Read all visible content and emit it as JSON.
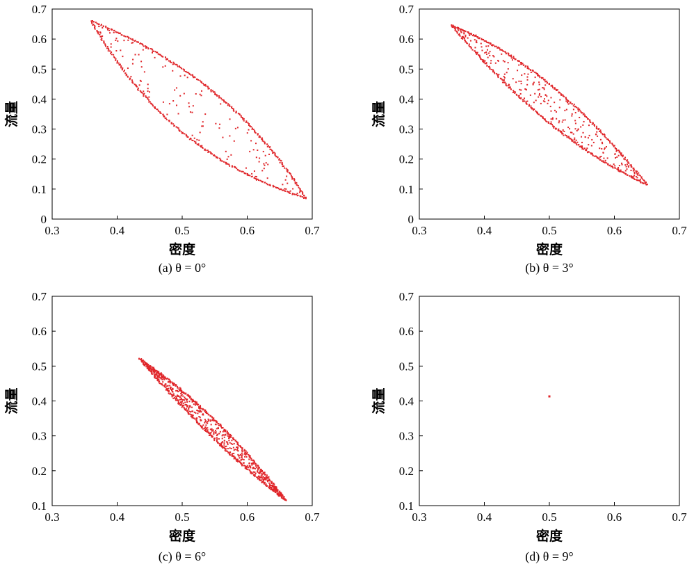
{
  "chart_data": [
    {
      "type": "scatter",
      "caption": "(a) θ = 0°",
      "xlabel": "密度",
      "ylabel": "流量",
      "xlim": [
        0.3,
        0.7
      ],
      "ylim": [
        0,
        0.7
      ],
      "xticks": [
        "0.3",
        "0.4",
        "0.5",
        "0.6",
        "0.7"
      ],
      "yticks": [
        "0",
        "0.1",
        "0.2",
        "0.3",
        "0.4",
        "0.5",
        "0.6",
        "0.7"
      ],
      "color": "#e0262a",
      "grid": false,
      "description_points": {
        "endpoint_upper_left": [
          0.36,
          0.66
        ],
        "endpoint_lower_right": [
          0.69,
          0.07
        ],
        "upper_branch_mid": [
          0.55,
          0.42
        ],
        "lower_branch_mid": [
          0.5,
          0.29
        ]
      }
    },
    {
      "type": "scatter",
      "caption": "(b) θ = 3°",
      "xlabel": "密度",
      "ylabel": "流量",
      "xlim": [
        0.3,
        0.7
      ],
      "ylim": [
        0,
        0.7
      ],
      "xticks": [
        "0.3",
        "0.4",
        "0.5",
        "0.6",
        "0.7"
      ],
      "yticks": [
        "0",
        "0.1",
        "0.2",
        "0.3",
        "0.4",
        "0.5",
        "0.6",
        "0.7"
      ],
      "color": "#e0262a",
      "grid": false,
      "description_points": {
        "endpoint_upper_left": [
          0.35,
          0.645
        ],
        "endpoint_lower_right": [
          0.65,
          0.115
        ],
        "upper_branch_mid": [
          0.5,
          0.45
        ],
        "lower_branch_mid": [
          0.5,
          0.32
        ]
      }
    },
    {
      "type": "scatter",
      "caption": "(c) θ = 6°",
      "xlabel": "密度",
      "ylabel": "流量",
      "xlim": [
        0.3,
        0.7
      ],
      "ylim": [
        0.1,
        0.7
      ],
      "xticks": [
        "0.3",
        "0.4",
        "0.5",
        "0.6",
        "0.7"
      ],
      "yticks": [
        "0.1",
        "0.2",
        "0.3",
        "0.4",
        "0.5",
        "0.6",
        "0.7"
      ],
      "color": "#e0262a",
      "grid": false,
      "description_points": {
        "endpoint_upper_left": [
          0.435,
          0.52
        ],
        "endpoint_lower_right": [
          0.66,
          0.115
        ],
        "upper_branch_mid": [
          0.55,
          0.345
        ],
        "lower_branch_mid": [
          0.55,
          0.29
        ]
      }
    },
    {
      "type": "scatter",
      "caption": "(d) θ = 9°",
      "xlabel": "密度",
      "ylabel": "流量",
      "xlim": [
        0.3,
        0.7
      ],
      "ylim": [
        0.1,
        0.7
      ],
      "xticks": [
        "0.3",
        "0.4",
        "0.5",
        "0.6",
        "0.7"
      ],
      "yticks": [
        "0.1",
        "0.2",
        "0.3",
        "0.4",
        "0.5",
        "0.6",
        "0.7"
      ],
      "color": "#e0262a",
      "grid": false,
      "single_point": [
        0.5,
        0.413
      ]
    }
  ]
}
